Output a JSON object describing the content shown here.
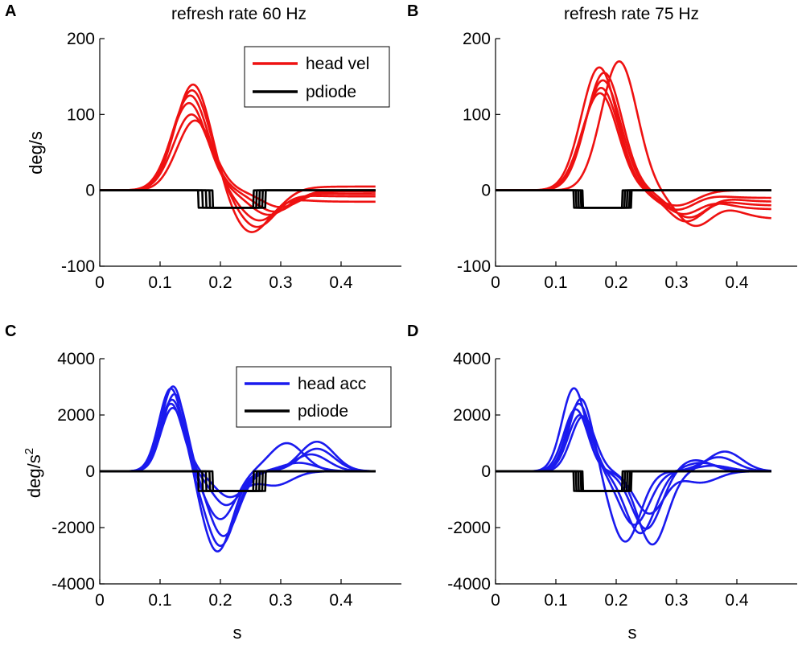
{
  "chart_data": [
    {
      "type": "line",
      "panel_label": "A",
      "title": "refresh rate 60 Hz",
      "xlabel": "",
      "ylabel": "deg/s",
      "xlim": [
        0,
        0.5
      ],
      "ylim": [
        -100,
        200
      ],
      "xticks": [
        0,
        0.1,
        0.2,
        0.3,
        0.4
      ],
      "yticks": [
        -100,
        0,
        100,
        200
      ],
      "xtick_labels": [
        "0",
        "0.1",
        "0.2",
        "0.3",
        "0.4"
      ],
      "ytick_labels": [
        "-100",
        "0",
        "100",
        "200"
      ],
      "legend": {
        "position": "top-right",
        "entries": [
          {
            "label": "head vel",
            "color": "#ee1111"
          },
          {
            "label": "pdiode",
            "color": "#000000"
          }
        ]
      },
      "series": [
        {
          "name": "head vel",
          "color": "#ee1111",
          "kind": "vel",
          "peak": 140,
          "t0": 0.155,
          "neg": -55,
          "t_neg": 0.25,
          "tail": -15
        },
        {
          "name": "head vel",
          "color": "#ee1111",
          "kind": "vel",
          "peak": 132,
          "t0": 0.153,
          "neg": -48,
          "t_neg": 0.26,
          "tail": -8
        },
        {
          "name": "head vel",
          "color": "#ee1111",
          "kind": "vel",
          "peak": 125,
          "t0": 0.15,
          "neg": -40,
          "t_neg": 0.265,
          "tail": 5
        },
        {
          "name": "head vel",
          "color": "#ee1111",
          "kind": "vel",
          "peak": 115,
          "t0": 0.148,
          "neg": -32,
          "t_neg": 0.28,
          "tail": -5
        },
        {
          "name": "head vel",
          "color": "#ee1111",
          "kind": "vel",
          "peak": 100,
          "t0": 0.152,
          "neg": -28,
          "t_neg": 0.29,
          "tail": 0
        },
        {
          "name": "head vel",
          "color": "#ee1111",
          "kind": "vel",
          "peak": 92,
          "t0": 0.158,
          "neg": -22,
          "t_neg": 0.3,
          "tail": -2
        },
        {
          "name": "pdiode",
          "color": "#000000",
          "kind": "step",
          "low": -23,
          "t_on": 0.163,
          "t_off": 0.255
        },
        {
          "name": "pdiode",
          "color": "#000000",
          "kind": "step",
          "low": -23,
          "t_on": 0.17,
          "t_off": 0.26
        },
        {
          "name": "pdiode",
          "color": "#000000",
          "kind": "step",
          "low": -23,
          "t_on": 0.176,
          "t_off": 0.265
        },
        {
          "name": "pdiode",
          "color": "#000000",
          "kind": "step",
          "low": -23,
          "t_on": 0.182,
          "t_off": 0.27
        },
        {
          "name": "pdiode",
          "color": "#000000",
          "kind": "step",
          "low": -23,
          "t_on": 0.187,
          "t_off": 0.275
        }
      ]
    },
    {
      "type": "line",
      "panel_label": "B",
      "title": "refresh rate 75 Hz",
      "xlabel": "",
      "ylabel": "",
      "xlim": [
        0,
        0.5
      ],
      "ylim": [
        -100,
        200
      ],
      "xticks": [
        0,
        0.1,
        0.2,
        0.3,
        0.4
      ],
      "yticks": [
        -100,
        0,
        100,
        200
      ],
      "xtick_labels": [
        "0",
        "0.1",
        "0.2",
        "0.3",
        "0.4"
      ],
      "ytick_labels": [
        "-100",
        "0",
        "100",
        "200"
      ],
      "series": [
        {
          "name": "head vel",
          "color": "#ee1111",
          "kind": "vel",
          "peak": 170,
          "t0": 0.205,
          "neg": -45,
          "t_neg": 0.33,
          "tail": -38
        },
        {
          "name": "head vel",
          "color": "#ee1111",
          "kind": "vel",
          "peak": 162,
          "t0": 0.172,
          "neg": -40,
          "t_neg": 0.315,
          "tail": -20
        },
        {
          "name": "head vel",
          "color": "#ee1111",
          "kind": "vel",
          "peak": 155,
          "t0": 0.18,
          "neg": -35,
          "t_neg": 0.32,
          "tail": -15
        },
        {
          "name": "head vel",
          "color": "#ee1111",
          "kind": "vel",
          "peak": 145,
          "t0": 0.178,
          "neg": -30,
          "t_neg": 0.31,
          "tail": -25
        },
        {
          "name": "head vel",
          "color": "#ee1111",
          "kind": "vel",
          "peak": 135,
          "t0": 0.175,
          "neg": -25,
          "t_neg": 0.3,
          "tail": -10
        },
        {
          "name": "head vel",
          "color": "#ee1111",
          "kind": "vel",
          "peak": 128,
          "t0": 0.173,
          "neg": -20,
          "t_neg": 0.3,
          "tail": 0
        },
        {
          "name": "pdiode",
          "color": "#000000",
          "kind": "step",
          "low": -23,
          "t_on": 0.13,
          "t_off": 0.21
        },
        {
          "name": "pdiode",
          "color": "#000000",
          "kind": "step",
          "low": -23,
          "t_on": 0.134,
          "t_off": 0.214
        },
        {
          "name": "pdiode",
          "color": "#000000",
          "kind": "step",
          "low": -23,
          "t_on": 0.138,
          "t_off": 0.218
        },
        {
          "name": "pdiode",
          "color": "#000000",
          "kind": "step",
          "low": -23,
          "t_on": 0.142,
          "t_off": 0.222
        },
        {
          "name": "pdiode",
          "color": "#000000",
          "kind": "step",
          "low": -23,
          "t_on": 0.145,
          "t_off": 0.225
        }
      ]
    },
    {
      "type": "line",
      "panel_label": "C",
      "title": "",
      "xlabel": "s",
      "ylabel": "deg/s",
      "ylabel_sup": "2",
      "xlim": [
        0,
        0.5
      ],
      "ylim": [
        -4000,
        4000
      ],
      "xticks": [
        0,
        0.1,
        0.2,
        0.3,
        0.4
      ],
      "yticks": [
        -4000,
        -2000,
        0,
        2000,
        4000
      ],
      "xtick_labels": [
        "0",
        "0.1",
        "0.2",
        "0.3",
        "0.4"
      ],
      "ytick_labels": [
        "-4000",
        "-2000",
        "0",
        "2000",
        "4000"
      ],
      "legend": {
        "position": "top-right",
        "entries": [
          {
            "label": "head acc",
            "color": "#1a1aee"
          },
          {
            "label": "pdiode",
            "color": "#000000"
          }
        ]
      },
      "series": [
        {
          "name": "head acc",
          "color": "#1a1aee",
          "kind": "acc",
          "peak": 3050,
          "t_peak": 0.122,
          "neg": -2850,
          "t_neg": 0.195,
          "p3": 800,
          "t3": 0.36
        },
        {
          "name": "head acc",
          "color": "#1a1aee",
          "kind": "acc",
          "peak": 2950,
          "t_peak": 0.118,
          "neg": -2650,
          "t_neg": 0.2,
          "p3": 1050,
          "t3": 0.36
        },
        {
          "name": "head acc",
          "color": "#1a1aee",
          "kind": "acc",
          "peak": 2750,
          "t_peak": 0.124,
          "neg": -2300,
          "t_neg": 0.205,
          "p3": 600,
          "t3": 0.35
        },
        {
          "name": "head acc",
          "color": "#1a1aee",
          "kind": "acc",
          "peak": 2550,
          "t_peak": 0.12,
          "neg": -1700,
          "t_neg": 0.2,
          "p3": 1000,
          "t3": 0.31
        },
        {
          "name": "head acc",
          "color": "#1a1aee",
          "kind": "acc",
          "peak": 2400,
          "t_peak": 0.118,
          "neg": -1200,
          "t_neg": 0.21,
          "p3": 300,
          "t3": 0.33
        },
        {
          "name": "head acc",
          "color": "#1a1aee",
          "kind": "acc",
          "peak": 2250,
          "t_peak": 0.121,
          "neg": -900,
          "t_neg": 0.215,
          "p3": -500,
          "t3": 0.29
        },
        {
          "name": "pdiode",
          "color": "#000000",
          "kind": "step",
          "low": -700,
          "t_on": 0.163,
          "t_off": 0.255
        },
        {
          "name": "pdiode",
          "color": "#000000",
          "kind": "step",
          "low": -700,
          "t_on": 0.17,
          "t_off": 0.26
        },
        {
          "name": "pdiode",
          "color": "#000000",
          "kind": "step",
          "low": -700,
          "t_on": 0.176,
          "t_off": 0.265
        },
        {
          "name": "pdiode",
          "color": "#000000",
          "kind": "step",
          "low": -700,
          "t_on": 0.182,
          "t_off": 0.27
        },
        {
          "name": "pdiode",
          "color": "#000000",
          "kind": "step",
          "low": -700,
          "t_on": 0.187,
          "t_off": 0.275
        }
      ]
    },
    {
      "type": "line",
      "panel_label": "D",
      "title": "",
      "xlabel": "s",
      "ylabel": "",
      "xlim": [
        0,
        0.5
      ],
      "ylim": [
        -4000,
        4000
      ],
      "xticks": [
        0,
        0.1,
        0.2,
        0.3,
        0.4
      ],
      "yticks": [
        -4000,
        -2000,
        0,
        2000,
        4000
      ],
      "xtick_labels": [
        "0",
        "0.1",
        "0.2",
        "0.3",
        "0.4"
      ],
      "ytick_labels": [
        "-4000",
        "-2000",
        "0",
        "2000",
        "4000"
      ],
      "series": [
        {
          "name": "head acc",
          "color": "#1a1aee",
          "kind": "acc",
          "peak": 2950,
          "t_peak": 0.13,
          "neg": -2600,
          "t_neg": 0.26,
          "p3": 700,
          "t3": 0.38
        },
        {
          "name": "head acc",
          "color": "#1a1aee",
          "kind": "acc",
          "peak": 2600,
          "t_peak": 0.142,
          "neg": -2500,
          "t_neg": 0.215,
          "p3": 500,
          "t3": 0.37
        },
        {
          "name": "head acc",
          "color": "#1a1aee",
          "kind": "acc",
          "peak": 2400,
          "t_peak": 0.138,
          "neg": -2200,
          "t_neg": 0.24,
          "p3": 300,
          "t3": 0.34
        },
        {
          "name": "head acc",
          "color": "#1a1aee",
          "kind": "acc",
          "peak": 2200,
          "t_peak": 0.133,
          "neg": -2050,
          "t_neg": 0.25,
          "p3": 400,
          "t3": 0.33
        },
        {
          "name": "head acc",
          "color": "#1a1aee",
          "kind": "acc",
          "peak": 2000,
          "t_peak": 0.14,
          "neg": -1900,
          "t_neg": 0.23,
          "p3": 200,
          "t3": 0.36
        },
        {
          "name": "head acc",
          "color": "#1a1aee",
          "kind": "acc",
          "peak": 1950,
          "t_peak": 0.145,
          "neg": -1500,
          "t_neg": 0.255,
          "p3": -400,
          "t3": 0.34
        },
        {
          "name": "pdiode",
          "color": "#000000",
          "kind": "step",
          "low": -700,
          "t_on": 0.13,
          "t_off": 0.21
        },
        {
          "name": "pdiode",
          "color": "#000000",
          "kind": "step",
          "low": -700,
          "t_on": 0.134,
          "t_off": 0.214
        },
        {
          "name": "pdiode",
          "color": "#000000",
          "kind": "step",
          "low": -700,
          "t_on": 0.138,
          "t_off": 0.218
        },
        {
          "name": "pdiode",
          "color": "#000000",
          "kind": "step",
          "low": -700,
          "t_on": 0.142,
          "t_off": 0.222
        },
        {
          "name": "pdiode",
          "color": "#000000",
          "kind": "step",
          "low": -700,
          "t_on": 0.145,
          "t_off": 0.225
        }
      ]
    }
  ]
}
